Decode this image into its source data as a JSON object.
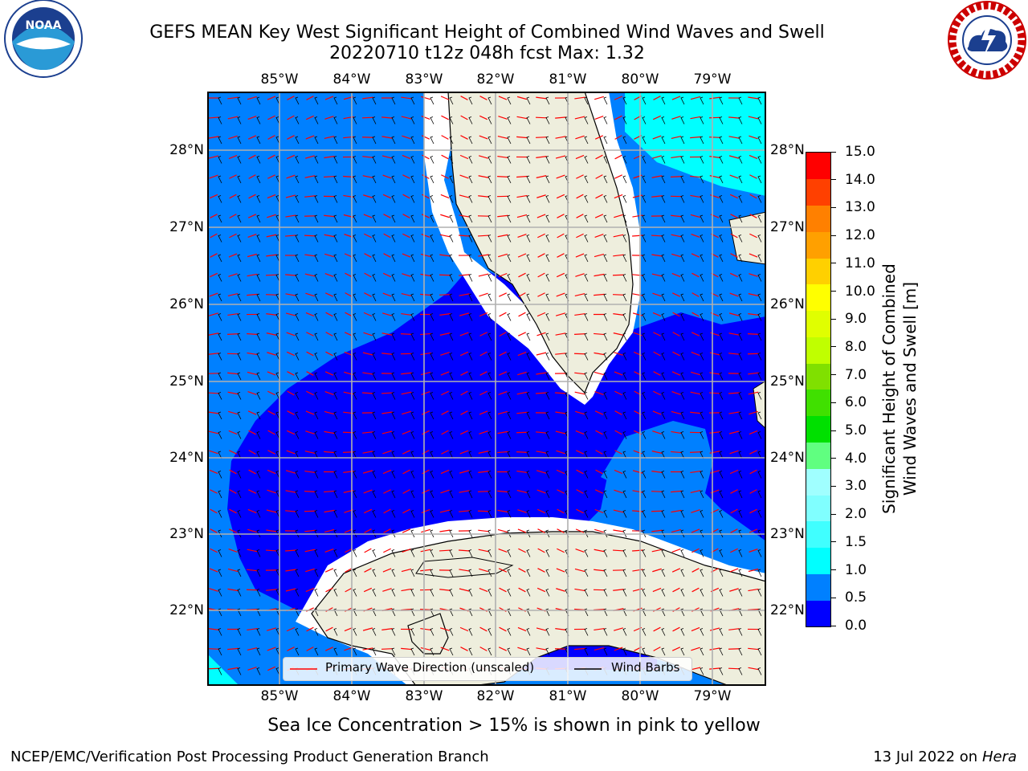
{
  "title": {
    "line1": "GEFS MEAN Key West Significant Height of Combined Wind Waves and Swell",
    "line2": "20220710 t12z 048h fcst   Max: 1.32"
  },
  "logos": {
    "left": {
      "text": "NOAA",
      "ring_top": "NATIONAL OCEANIC AND ATMOSPHERIC ADMINISTRATION",
      "ring_bottom": "U.S. DEPARTMENT OF COMMERCE"
    },
    "right": {
      "ring": "NATIONAL WEATHER SERVICE"
    }
  },
  "map": {
    "lon_labels": [
      "85°W",
      "84°W",
      "83°W",
      "82°W",
      "81°W",
      "80°W",
      "79°W"
    ],
    "lat_labels": [
      "28°N",
      "27°N",
      "26°N",
      "25°N",
      "24°N",
      "23°N",
      "22°N"
    ]
  },
  "legend": {
    "primary": "Primary Wave Direction (unscaled)",
    "barbs": "Wind Barbs",
    "primary_color": "#ff0000",
    "barbs_color": "#000000"
  },
  "colorbar": {
    "label": "Significant Height of Combined\nWind Waves and Swell [m]",
    "ticks": [
      "0.0",
      "0.5",
      "1.0",
      "1.5",
      "2.0",
      "3.0",
      "4.0",
      "5.0",
      "6.0",
      "7.0",
      "8.0",
      "9.0",
      "10.0",
      "11.0",
      "12.0",
      "13.0",
      "14.0",
      "15.0"
    ],
    "colors": [
      "#0000ff",
      "#0080ff",
      "#00ffff",
      "#40ffff",
      "#80ffff",
      "#a0ffff",
      "#60ff80",
      "#00e000",
      "#40e000",
      "#80e000",
      "#c0ff00",
      "#e0ff00",
      "#ffff00",
      "#ffd000",
      "#ffa000",
      "#ff8000",
      "#ff4000",
      "#ff0000"
    ]
  },
  "subtitle": "Sea Ice Concentration > 15% is shown in pink to yellow",
  "footer": {
    "left": "NCEP/EMC/Verification Post Processing Product Generation Branch",
    "right_date": "13 Jul 2022 on ",
    "right_host": "Hera"
  },
  "palette": {
    "land": "#eeeedd",
    "grid": "#b0b0b0",
    "wave_0": "#0000ff",
    "wave_05": "#0080ff",
    "wave_10": "#00ffff",
    "wave_15": "#40ffff"
  }
}
